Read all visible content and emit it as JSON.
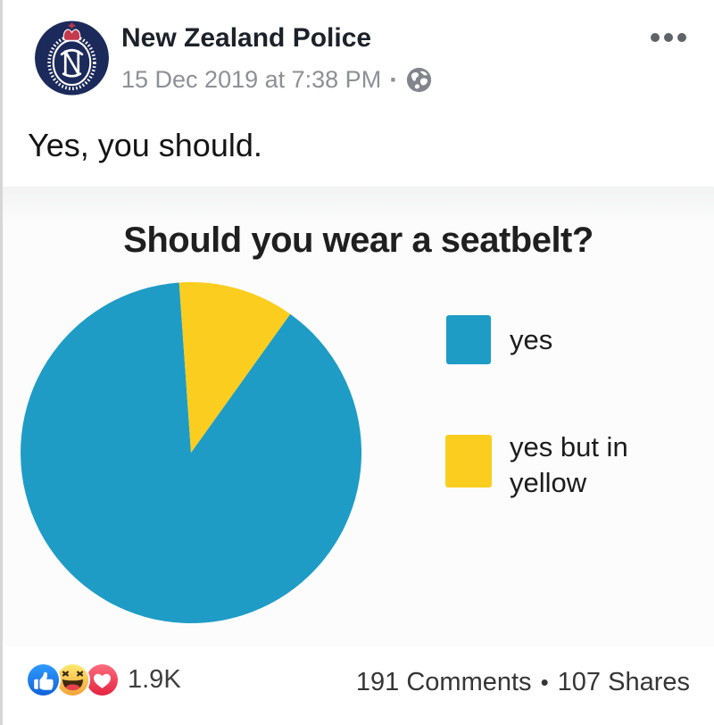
{
  "post": {
    "author": "New Zealand Police",
    "timestamp": "15 Dec 2019 at 7:38 PM",
    "meta_separator": "·",
    "text": "Yes, you should."
  },
  "chart_data": {
    "type": "pie",
    "title": "Should you wear a seatbelt?",
    "series": [
      {
        "name": "yes",
        "value": 89,
        "color": "#1E9CC6"
      },
      {
        "name": "yes but in yellow",
        "value": 11,
        "color": "#FBCD1F"
      }
    ],
    "start_angle_deg": 35.6,
    "legend_position": "right",
    "background": "#fcfcfd"
  },
  "footer": {
    "reaction_icons": [
      "like-icon",
      "haha-icon",
      "love-icon"
    ],
    "reaction_count": "1.9K",
    "comments": "191 Comments",
    "separator": "•",
    "shares": "107 Shares"
  }
}
